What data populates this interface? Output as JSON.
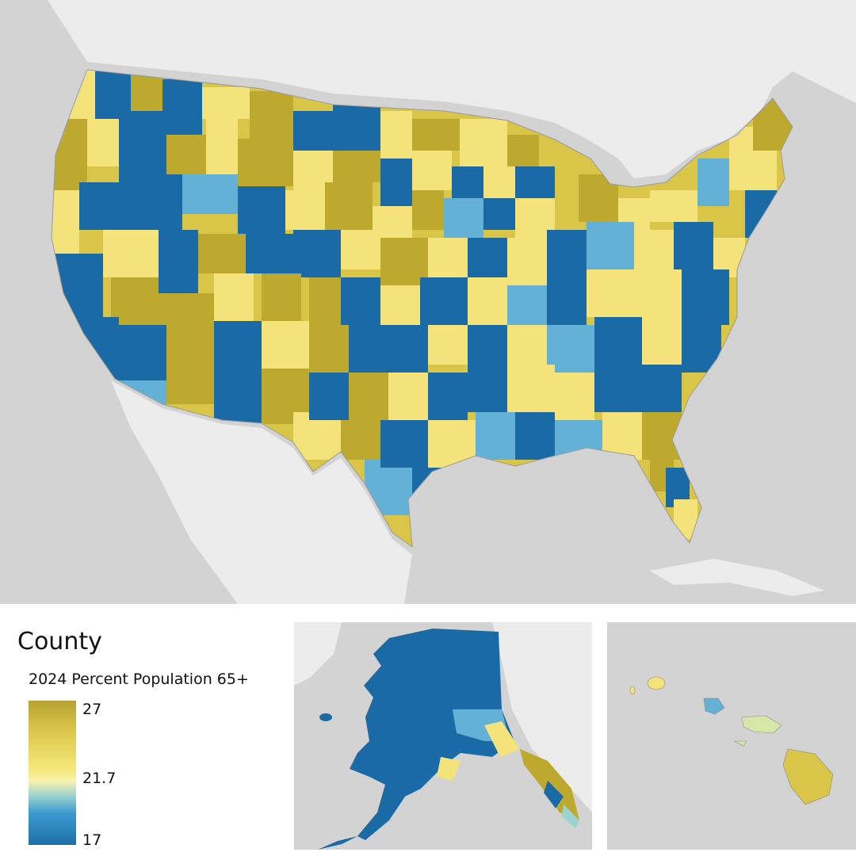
{
  "legend": {
    "title": "County",
    "subtitle": "2024 Percent Population 65+",
    "max_label": "27",
    "mid_label": "21.7",
    "min_label": "17",
    "ramp_colors": [
      "#b5a332",
      "#d9c548",
      "#f5e97a",
      "#f8f2b0",
      "#9bd3d0",
      "#3a9bd0",
      "#1e6fa6"
    ]
  },
  "colors": {
    "ocean": "#d3d3d3",
    "land_context": "#ececec",
    "high": "#bda92e",
    "upper": "#f3e37a",
    "mid": "#f8f2b0",
    "lower": "#63b1d6",
    "low": "#1a6aa5"
  }
}
